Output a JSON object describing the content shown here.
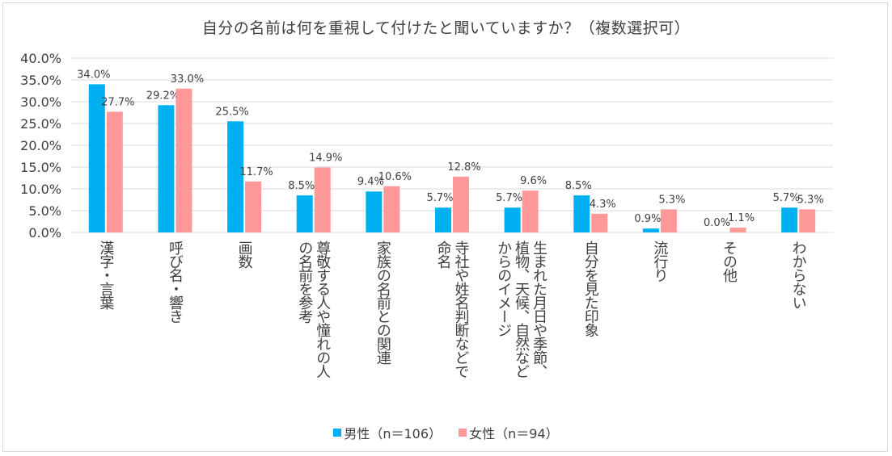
{
  "colors": {
    "male": "#00b0f0",
    "female": "#ff9999",
    "grid": "#d9d9d9",
    "text": "#404040"
  },
  "chart_data": {
    "type": "bar",
    "title": "自分の名前は何を重視して付けたと聞いていますか？（複数選択可）",
    "categories": [
      "漢字・言葉",
      "呼び名・響き",
      "画数",
      "尊敬する人や憧れの人\nの名前を参考",
      "家族の名前との関連",
      "寺社や姓名判断などで\n命名",
      "生まれた月日や季節、\n植物、天候、自然など\nからのイメージ",
      "自分を見た印象",
      "流行り",
      "その他",
      "わからない"
    ],
    "series": [
      {
        "name": "男性（n＝106）",
        "values": [
          34.0,
          29.2,
          25.5,
          8.5,
          9.4,
          5.7,
          5.7,
          8.5,
          0.9,
          0.0,
          5.7
        ]
      },
      {
        "name": "女性（n＝94）",
        "values": [
          27.7,
          33.0,
          11.7,
          14.9,
          10.6,
          12.8,
          9.6,
          4.3,
          5.3,
          1.1,
          5.3
        ]
      }
    ],
    "data_labels": [
      [
        "34.0%",
        "29.2%",
        "25.5%",
        "8.5%",
        "9.4%",
        "5.7%",
        "5.7%",
        "8.5%",
        "0.9%",
        "0.0%",
        "5.7%"
      ],
      [
        "27.7%",
        "33.0%",
        "11.7%",
        "14.9%",
        "10.6%",
        "12.8%",
        "9.6%",
        "4.3%",
        "5.3%",
        "1.1%",
        "5.3%"
      ]
    ],
    "yticks": [
      "0.0%",
      "5.0%",
      "10.0%",
      "15.0%",
      "20.0%",
      "25.0%",
      "30.0%",
      "35.0%",
      "40.0%"
    ],
    "ylim": [
      0,
      40
    ],
    "xlabel": "",
    "ylabel": "",
    "legend_position": "bottom"
  }
}
